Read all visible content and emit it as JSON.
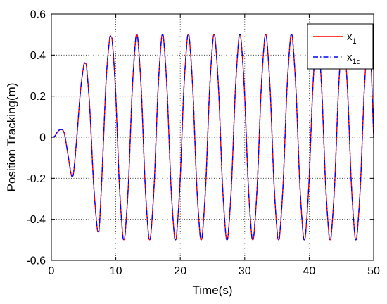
{
  "chart_data": {
    "type": "line",
    "title": "",
    "xlabel": "Time(s)",
    "ylabel": "Position Tracking(m)",
    "xlim": [
      0,
      50
    ],
    "ylim": [
      -0.6,
      0.6
    ],
    "xticks": [
      0,
      10,
      20,
      30,
      40,
      50
    ],
    "xtick_labels": [
      "0",
      "10",
      "20",
      "30",
      "40",
      "50"
    ],
    "yticks": [
      -0.6,
      -0.4,
      -0.2,
      0,
      0.2,
      0.4,
      0.6
    ],
    "ytick_labels": [
      "-0.6",
      "-0.4",
      "-0.2",
      "0",
      "0.2",
      "0.4",
      "0.6"
    ],
    "grid": true,
    "grid_style": "dotted",
    "legend_position": "top-right",
    "series": [
      {
        "name": "x1",
        "legend_main": "x",
        "legend_sub": "1",
        "color": "#ff0000",
        "style": "solid",
        "x": [
          0,
          0.5,
          1,
          1.5,
          2,
          2.5,
          3,
          3.25,
          3.5,
          4,
          4.5,
          5,
          5.25,
          5.5,
          6,
          6.5,
          7,
          7.25,
          7.5,
          8,
          8.5,
          9,
          9.25,
          9.5,
          10,
          10.5,
          11,
          11.25,
          11.5,
          12,
          12.5,
          13,
          13.25,
          13.5,
          14,
          14.5,
          15,
          15.25,
          15.5,
          16,
          16.5,
          17,
          17.25,
          17.5,
          18,
          18.5,
          19,
          19.25,
          19.5,
          20,
          20.5,
          21,
          21.25,
          21.5,
          22,
          22.5,
          23,
          23.25,
          23.5,
          24,
          24.5,
          25,
          25.25,
          25.5,
          26,
          26.5,
          27,
          27.25,
          27.5,
          28,
          28.5,
          29,
          29.25,
          29.5,
          30,
          30.5,
          31,
          31.25,
          31.5,
          32,
          32.5,
          33,
          33.25,
          33.5,
          34,
          34.5,
          35,
          35.25,
          35.5,
          36,
          36.5,
          37,
          37.25,
          37.5,
          38,
          38.5,
          39,
          39.25,
          39.5,
          40,
          40.5,
          41,
          41.25,
          41.5,
          42,
          42.5,
          43,
          43.25,
          43.5,
          44,
          44.5,
          45,
          45.25,
          45.5,
          46,
          46.5,
          47,
          47.25,
          47.5,
          48,
          48.5,
          49,
          49.25,
          49.5,
          50
        ],
        "y": [
          0,
          0.004,
          0.028,
          0.038,
          0.02,
          -0.07,
          -0.17,
          -0.19,
          -0.16,
          0.02,
          0.22,
          0.345,
          0.36,
          0.33,
          0.12,
          -0.2,
          -0.41,
          -0.46,
          -0.41,
          -0.08,
          0.28,
          0.47,
          0.49,
          0.45,
          0.2,
          -0.2,
          -0.45,
          -0.5,
          -0.45,
          -0.2,
          0.2,
          0.45,
          0.5,
          0.45,
          0.2,
          -0.2,
          -0.45,
          -0.5,
          -0.45,
          -0.2,
          0.2,
          0.45,
          0.5,
          0.45,
          0.2,
          -0.2,
          -0.45,
          -0.5,
          -0.45,
          -0.2,
          0.2,
          0.45,
          0.5,
          0.45,
          0.2,
          -0.2,
          -0.45,
          -0.5,
          -0.45,
          -0.2,
          0.2,
          0.45,
          0.5,
          0.45,
          0.2,
          -0.2,
          -0.45,
          -0.5,
          -0.45,
          -0.2,
          0.2,
          0.45,
          0.5,
          0.45,
          0.2,
          -0.2,
          -0.45,
          -0.5,
          -0.45,
          -0.2,
          0.2,
          0.45,
          0.5,
          0.45,
          0.2,
          -0.2,
          -0.45,
          -0.5,
          -0.45,
          -0.2,
          0.2,
          0.45,
          0.5,
          0.45,
          0.2,
          -0.2,
          -0.45,
          -0.5,
          -0.45,
          -0.2,
          0.2,
          0.45,
          0.5,
          0.45,
          0.2,
          -0.2,
          -0.45,
          -0.5,
          -0.45,
          -0.2,
          0.2,
          0.45,
          0.5,
          0.45,
          0.2,
          -0.2,
          -0.45,
          -0.5,
          -0.45,
          -0.2,
          0.2,
          0.45,
          0.5,
          0.45,
          0
        ]
      },
      {
        "name": "x1d",
        "legend_main": "x",
        "legend_sub": "1d",
        "color": "#0000ff",
        "style": "dash-dot",
        "x": [
          0,
          0.5,
          1,
          1.5,
          2,
          2.5,
          3,
          3.25,
          3.5,
          4,
          4.5,
          5,
          5.25,
          5.5,
          6,
          6.5,
          7,
          7.25,
          7.5,
          8,
          8.5,
          9,
          9.25,
          9.5,
          10,
          10.5,
          11,
          11.25,
          11.5,
          12,
          12.5,
          13,
          13.25,
          13.5,
          14,
          14.5,
          15,
          15.25,
          15.5,
          16,
          16.5,
          17,
          17.25,
          17.5,
          18,
          18.5,
          19,
          19.25,
          19.5,
          20,
          20.5,
          21,
          21.25,
          21.5,
          22,
          22.5,
          23,
          23.25,
          23.5,
          24,
          24.5,
          25,
          25.25,
          25.5,
          26,
          26.5,
          27,
          27.25,
          27.5,
          28,
          28.5,
          29,
          29.25,
          29.5,
          30,
          30.5,
          31,
          31.25,
          31.5,
          32,
          32.5,
          33,
          33.25,
          33.5,
          34,
          34.5,
          35,
          35.25,
          35.5,
          36,
          36.5,
          37,
          37.25,
          37.5,
          38,
          38.5,
          39,
          39.25,
          39.5,
          40,
          40.5,
          41,
          41.25,
          41.5,
          42,
          42.5,
          43,
          43.25,
          43.5,
          44,
          44.5,
          45,
          45.25,
          45.5,
          46,
          46.5,
          47,
          47.25,
          47.5,
          48,
          48.5,
          49,
          49.25,
          49.5,
          50
        ],
        "y": [
          0,
          0.004,
          0.028,
          0.038,
          0.02,
          -0.07,
          -0.17,
          -0.19,
          -0.16,
          0.02,
          0.22,
          0.345,
          0.36,
          0.33,
          0.12,
          -0.2,
          -0.41,
          -0.46,
          -0.41,
          -0.08,
          0.28,
          0.47,
          0.49,
          0.45,
          0.2,
          -0.2,
          -0.45,
          -0.5,
          -0.45,
          -0.2,
          0.2,
          0.45,
          0.5,
          0.45,
          0.2,
          -0.2,
          -0.45,
          -0.5,
          -0.45,
          -0.2,
          0.2,
          0.45,
          0.5,
          0.45,
          0.2,
          -0.2,
          -0.45,
          -0.5,
          -0.45,
          -0.2,
          0.2,
          0.45,
          0.5,
          0.45,
          0.2,
          -0.2,
          -0.45,
          -0.5,
          -0.45,
          -0.2,
          0.2,
          0.45,
          0.5,
          0.45,
          0.2,
          -0.2,
          -0.45,
          -0.5,
          -0.45,
          -0.2,
          0.2,
          0.45,
          0.5,
          0.45,
          0.2,
          -0.2,
          -0.45,
          -0.5,
          -0.45,
          -0.2,
          0.2,
          0.45,
          0.5,
          0.45,
          0.2,
          -0.2,
          -0.45,
          -0.5,
          -0.45,
          -0.2,
          0.2,
          0.45,
          0.5,
          0.45,
          0.2,
          -0.2,
          -0.45,
          -0.5,
          -0.45,
          -0.2,
          0.2,
          0.45,
          0.5,
          0.45,
          0.2,
          -0.2,
          -0.45,
          -0.5,
          -0.45,
          -0.2,
          0.2,
          0.45,
          0.5,
          0.45,
          0.2,
          -0.2,
          -0.45,
          -0.5,
          -0.45,
          -0.2,
          0.2,
          0.45,
          0.5,
          0.45,
          0
        ]
      }
    ]
  }
}
